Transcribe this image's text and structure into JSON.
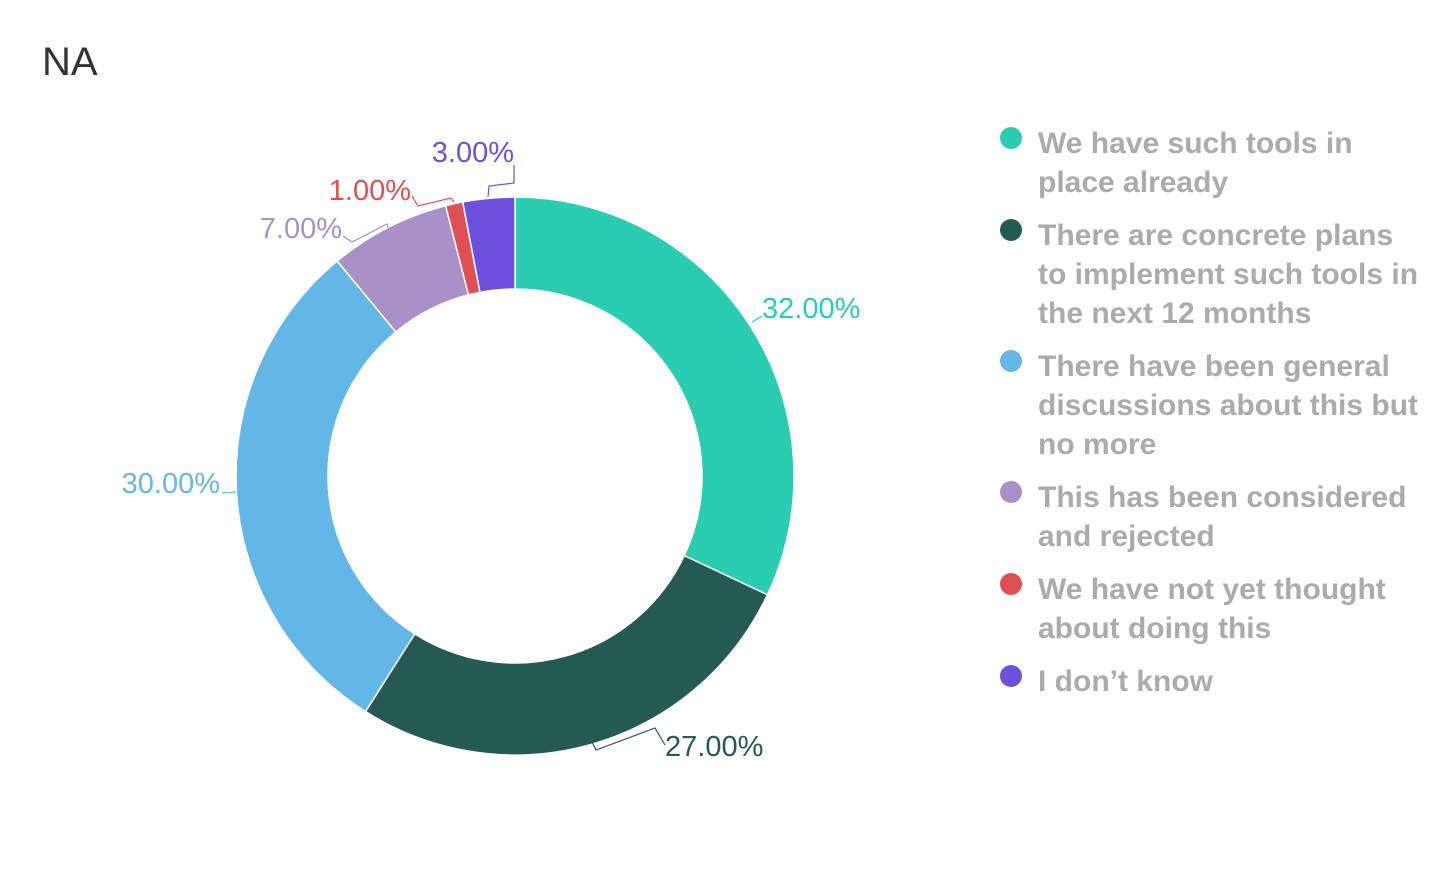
{
  "chart_data": {
    "type": "pie",
    "donut": true,
    "title": "NA",
    "categories": [
      "We have such tools in place already",
      "There are concrete plans to implement such tools in the next 12 months",
      "There have been general discussions about this but no more",
      "This has been considered and rejected",
      "We have not yet thought about doing this",
      "I don’t know"
    ],
    "values": [
      32,
      27,
      30,
      7,
      1,
      3
    ],
    "value_labels": [
      "32.00%",
      "27.00%",
      "30.00%",
      "7.00%",
      "1.00%",
      "3.00%"
    ],
    "colors": [
      "#2bcdb2",
      "#255a53",
      "#62b7e6",
      "#a991c8",
      "#de5052",
      "#6c51df"
    ],
    "legend_position": "right"
  }
}
